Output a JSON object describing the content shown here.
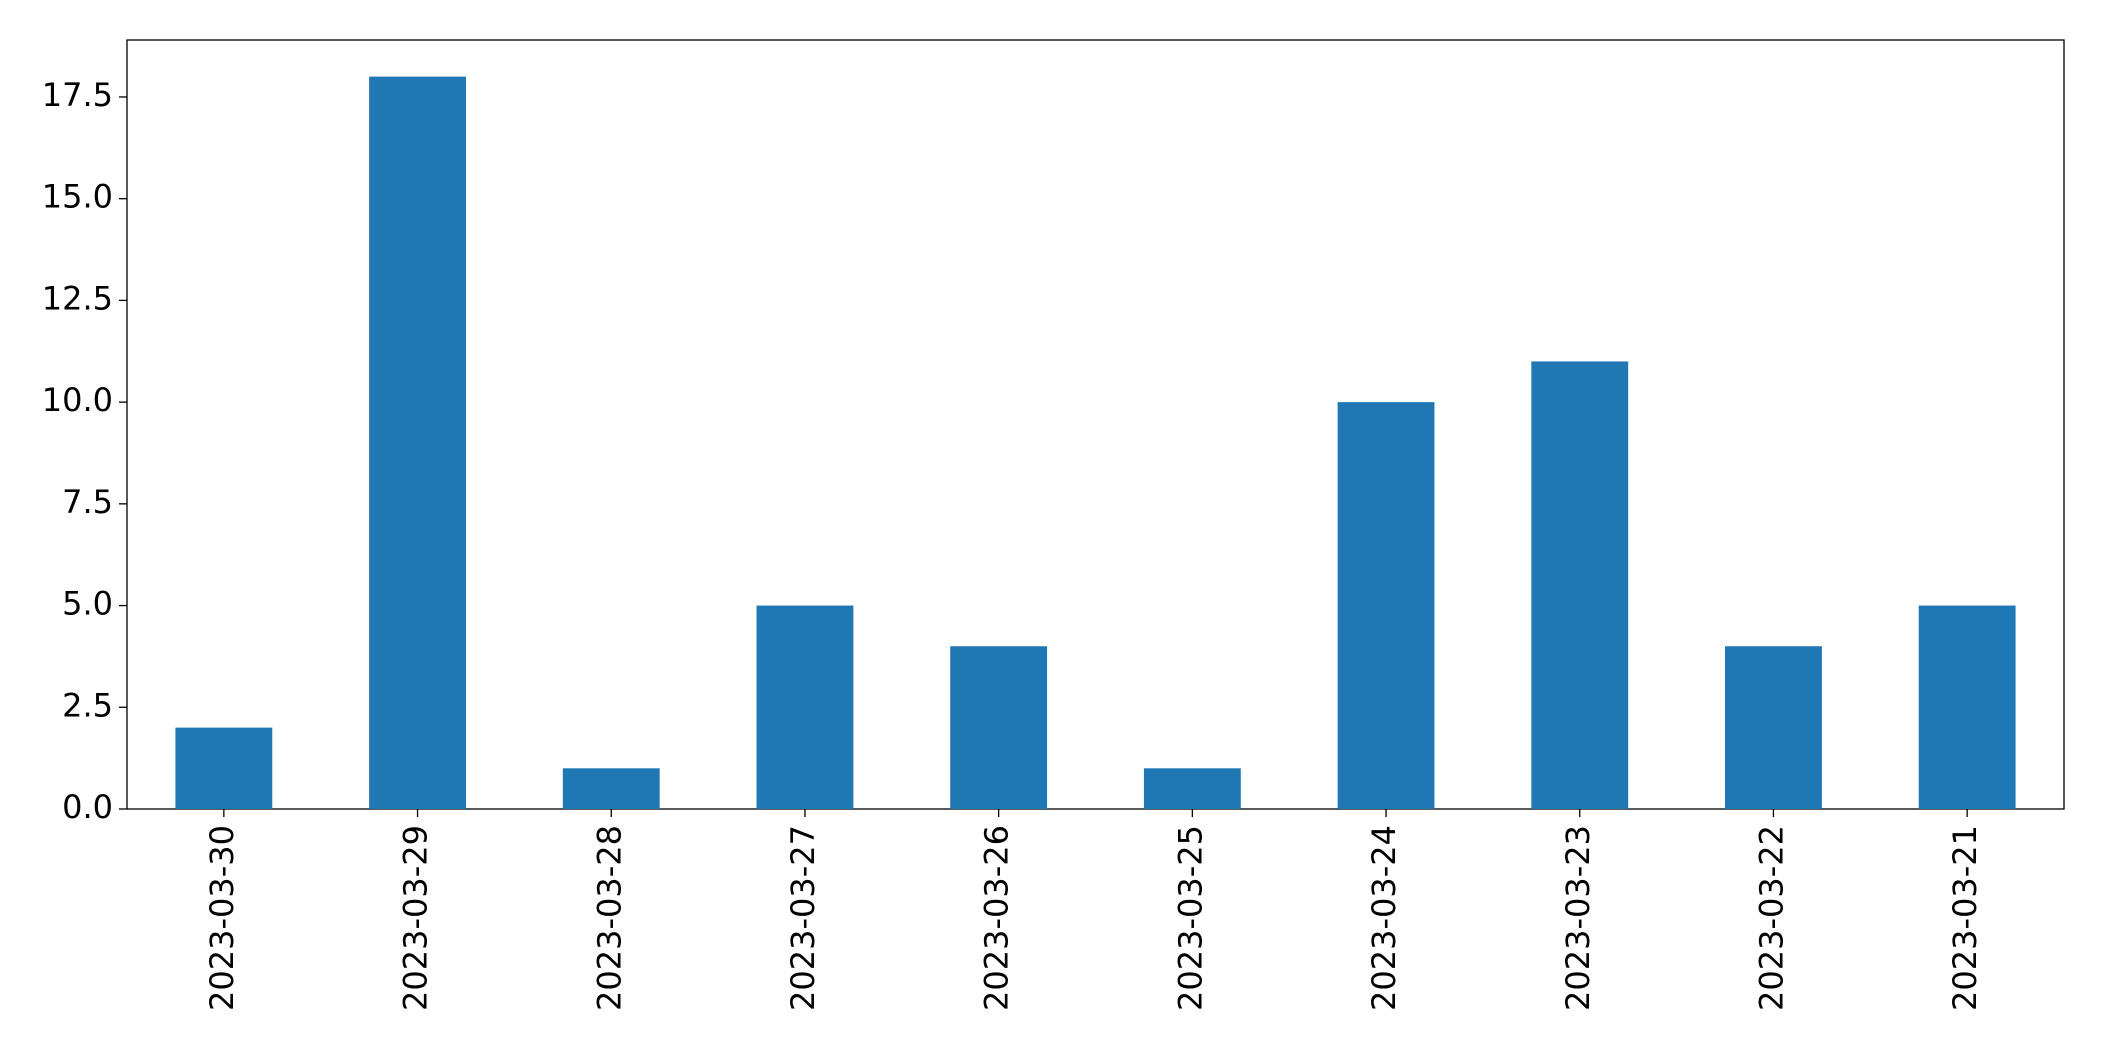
{
  "chart_data": {
    "type": "bar",
    "categories": [
      "2023-03-30",
      "2023-03-29",
      "2023-03-28",
      "2023-03-27",
      "2023-03-26",
      "2023-03-25",
      "2023-03-24",
      "2023-03-23",
      "2023-03-22",
      "2023-03-21"
    ],
    "values": [
      2,
      18,
      1,
      5,
      4,
      1,
      10,
      11,
      4,
      5
    ],
    "color": "#1f77b4",
    "ylim": [
      0,
      18.9
    ],
    "yticks": [
      {
        "value": 0,
        "label": "0.0"
      },
      2.5,
      {
        "value": 5,
        "label": "5.0"
      },
      7.5,
      {
        "value": 10,
        "label": "10.0"
      },
      12.5,
      {
        "value": 15,
        "label": "15.0"
      },
      17.5
    ],
    "grid": false
  }
}
